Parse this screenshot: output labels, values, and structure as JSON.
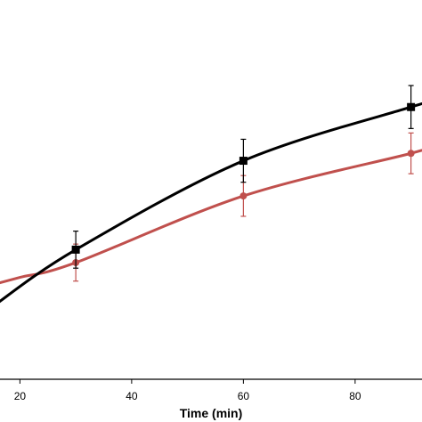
{
  "chart_data": {
    "type": "line",
    "xlabel": "Time (min)",
    "ylabel": "",
    "xlim": [
      15,
      95
    ],
    "ylim": [
      0,
      1
    ],
    "x_ticks": [
      20,
      40,
      60,
      80
    ],
    "grid": false,
    "series": [
      {
        "color": "#000000",
        "marker": "square",
        "x": [
          15,
          30,
          60,
          90,
          95
        ],
        "y": [
          0.195,
          0.35,
          0.59,
          0.735,
          0.755
        ],
        "error": [
          null,
          0.05,
          0.058,
          0.058,
          null
        ],
        "marker_indices": [
          1,
          2,
          3
        ]
      },
      {
        "color": "#c0504d",
        "marker": "circle",
        "x": [
          15,
          20,
          30,
          60,
          90,
          95
        ],
        "y": [
          0.255,
          0.275,
          0.315,
          0.495,
          0.61,
          0.635
        ],
        "error": [
          null,
          null,
          0.05,
          0.055,
          0.055,
          null
        ],
        "marker_indices": [
          2,
          3,
          4
        ]
      }
    ]
  }
}
